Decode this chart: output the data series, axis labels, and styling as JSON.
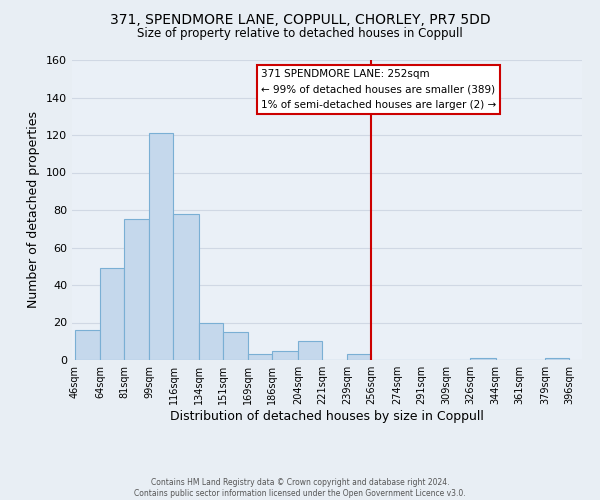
{
  "title": "371, SPENDMORE LANE, COPPULL, CHORLEY, PR7 5DD",
  "subtitle": "Size of property relative to detached houses in Coppull",
  "xlabel": "Distribution of detached houses by size in Coppull",
  "ylabel": "Number of detached properties",
  "bar_edges": [
    46,
    64,
    81,
    99,
    116,
    134,
    151,
    169,
    186,
    204,
    221,
    239,
    256,
    274,
    291,
    309,
    326,
    344,
    361,
    379,
    396
  ],
  "bar_heights": [
    16,
    49,
    75,
    121,
    78,
    20,
    15,
    3,
    5,
    10,
    0,
    3,
    0,
    0,
    0,
    0,
    1,
    0,
    0,
    1
  ],
  "bar_color": "#c5d8ec",
  "bar_edgecolor": "#7aafd4",
  "vline_x": 256,
  "vline_color": "#cc0000",
  "ylim": [
    0,
    160
  ],
  "yticks": [
    0,
    20,
    40,
    60,
    80,
    100,
    120,
    140,
    160
  ],
  "tick_labels": [
    "46sqm",
    "64sqm",
    "81sqm",
    "99sqm",
    "116sqm",
    "134sqm",
    "151sqm",
    "169sqm",
    "186sqm",
    "204sqm",
    "221sqm",
    "239sqm",
    "256sqm",
    "274sqm",
    "291sqm",
    "309sqm",
    "326sqm",
    "344sqm",
    "361sqm",
    "379sqm",
    "396sqm"
  ],
  "annotation_title": "371 SPENDMORE LANE: 252sqm",
  "annotation_line1": "← 99% of detached houses are smaller (389)",
  "annotation_line2": "1% of semi-detached houses are larger (2) →",
  "footer1": "Contains HM Land Registry data © Crown copyright and database right 2024.",
  "footer2": "Contains public sector information licensed under the Open Government Licence v3.0.",
  "fig_background": "#e8eef4",
  "plot_background": "#eaf0f7",
  "grid_color": "#d0d8e4",
  "spine_color": "#7aafd4"
}
